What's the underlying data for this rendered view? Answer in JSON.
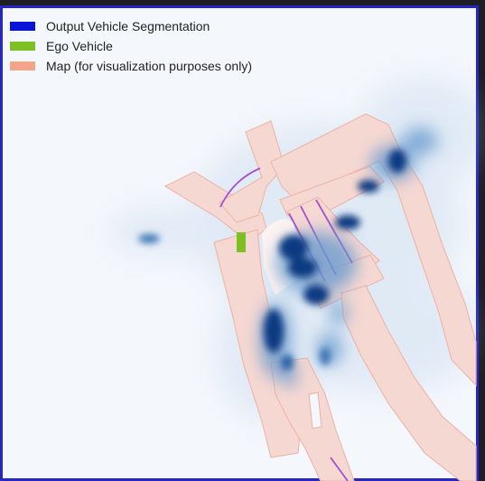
{
  "legend": {
    "items": [
      {
        "label": "Output Vehicle Segmentation",
        "color": "#0a14d8"
      },
      {
        "label": "Ego Vehicle",
        "color": "#7ec021"
      },
      {
        "label": "Map (for visualization purposes only)",
        "color": "#f4a589"
      }
    ]
  },
  "colors": {
    "background": "#f4f7fc",
    "frame_border": "#2626c4",
    "road": "#f6d8d2",
    "road_edge": "#eeb8ad",
    "lane_divider": "#a44fd0",
    "segmentation": "#08306b",
    "ego": "#7ec021"
  }
}
